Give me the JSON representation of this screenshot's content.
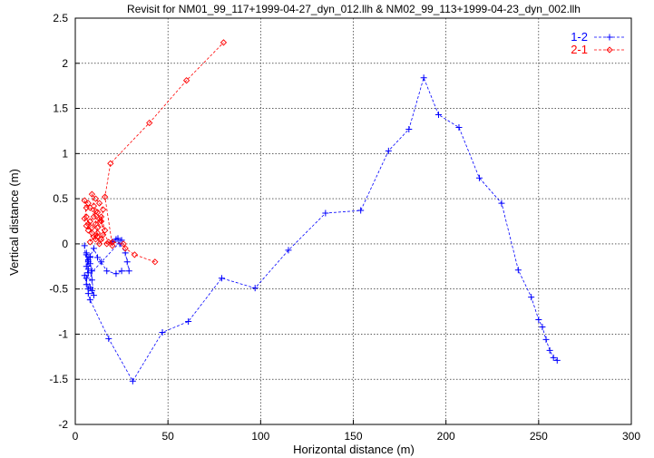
{
  "chart_data": {
    "type": "line",
    "title": "Revisit for NM01_99_117+1999-04-27_dyn_012.llh & NM02_99_113+1999-04-23_dyn_002.llh",
    "xlabel": "Horizontal distance (m)",
    "ylabel": "Vertical distance (m)",
    "xlim": [
      0,
      300
    ],
    "ylim": [
      -2,
      2.5
    ],
    "xticks": [
      "0",
      "50",
      "100",
      "150",
      "200",
      "250",
      "300"
    ],
    "yticks": [
      "-2",
      "-1.5",
      "-1",
      "-0.5",
      "0",
      "0.5",
      "1",
      "1.5",
      "2",
      "2.5"
    ],
    "grid": true,
    "legend_position": "top-right",
    "series": [
      {
        "name": "1-2",
        "color": "#0000ff",
        "marker": "plus",
        "points": [
          [
            5,
            -0.02
          ],
          [
            6,
            -0.25
          ],
          [
            7,
            -0.18
          ],
          [
            6,
            -0.12
          ],
          [
            7,
            -0.32
          ],
          [
            5,
            -0.35
          ],
          [
            6,
            -0.45
          ],
          [
            7,
            -0.2
          ],
          [
            8,
            -0.15
          ],
          [
            6,
            -0.1
          ],
          [
            7,
            -0.28
          ],
          [
            8,
            -0.22
          ],
          [
            9,
            -0.3
          ],
          [
            7,
            -0.5
          ],
          [
            8,
            -0.48
          ],
          [
            9,
            -0.52
          ],
          [
            10,
            -0.57
          ],
          [
            9,
            -0.4
          ],
          [
            8,
            -0.14
          ],
          [
            10,
            -0.05
          ],
          [
            12,
            -0.15
          ],
          [
            14,
            -0.2
          ],
          [
            17,
            -0.3
          ],
          [
            22,
            -0.33
          ],
          [
            25,
            -0.3
          ],
          [
            29,
            -0.3
          ],
          [
            28,
            -0.2
          ],
          [
            27,
            -0.1
          ],
          [
            24,
            0.0
          ],
          [
            22,
            0.05
          ],
          [
            20,
            0.02
          ],
          [
            23,
            0.06
          ],
          [
            25,
            0.04
          ],
          [
            6,
            -0.38
          ],
          [
            7,
            -0.55
          ],
          [
            8,
            -0.62
          ],
          [
            18,
            -1.05
          ],
          [
            31,
            -1.52
          ],
          [
            47,
            -0.98
          ],
          [
            61,
            -0.86
          ],
          [
            79,
            -0.38
          ],
          [
            97,
            -0.49
          ],
          [
            115,
            -0.07
          ],
          [
            135,
            0.34
          ],
          [
            154,
            0.37
          ],
          [
            169,
            1.03
          ],
          [
            180,
            1.27
          ],
          [
            188,
            1.84
          ],
          [
            196,
            1.43
          ],
          [
            207,
            1.29
          ],
          [
            218,
            0.73
          ],
          [
            230,
            0.45
          ],
          [
            239,
            -0.29
          ],
          [
            246,
            -0.59
          ],
          [
            250,
            -0.84
          ],
          [
            252,
            -0.92
          ],
          [
            254,
            -1.06
          ],
          [
            256,
            -1.18
          ],
          [
            258,
            -1.26
          ],
          [
            260,
            -1.29
          ]
        ]
      },
      {
        "name": "2-1",
        "color": "#ff0000",
        "marker": "diamond",
        "points": [
          [
            43,
            -0.2
          ],
          [
            32,
            -0.12
          ],
          [
            27,
            -0.05
          ],
          [
            26,
            0.0
          ],
          [
            20,
            0.02
          ],
          [
            17,
            0.0
          ],
          [
            14,
            0.05
          ],
          [
            12,
            0.12
          ],
          [
            10,
            0.08
          ],
          [
            8,
            0.02
          ],
          [
            9,
            0.18
          ],
          [
            11,
            0.22
          ],
          [
            13,
            0.28
          ],
          [
            12,
            0.35
          ],
          [
            10,
            0.3
          ],
          [
            8,
            0.25
          ],
          [
            7,
            0.15
          ],
          [
            6,
            0.2
          ],
          [
            5,
            0.28
          ],
          [
            6,
            0.4
          ],
          [
            7,
            0.45
          ],
          [
            5,
            0.48
          ],
          [
            6,
            0.3
          ],
          [
            7,
            0.22
          ],
          [
            9,
            0.12
          ],
          [
            11,
            0.05
          ],
          [
            12,
            0.18
          ],
          [
            14,
            0.25
          ],
          [
            15,
            0.38
          ],
          [
            13,
            0.45
          ],
          [
            11,
            0.5
          ],
          [
            9,
            0.55
          ],
          [
            10,
            0.42
          ],
          [
            12,
            0.08
          ],
          [
            13,
            0.0
          ],
          [
            15,
            0.1
          ],
          [
            14,
            0.3
          ],
          [
            16,
            0.15
          ],
          [
            11,
            0.36
          ],
          [
            8,
            0.4
          ],
          [
            18,
            0.02
          ],
          [
            20,
            -0.02
          ],
          [
            16,
            0.52
          ],
          [
            19,
            0.89
          ],
          [
            40,
            1.34
          ],
          [
            60,
            1.81
          ],
          [
            80,
            2.23
          ]
        ]
      }
    ]
  }
}
